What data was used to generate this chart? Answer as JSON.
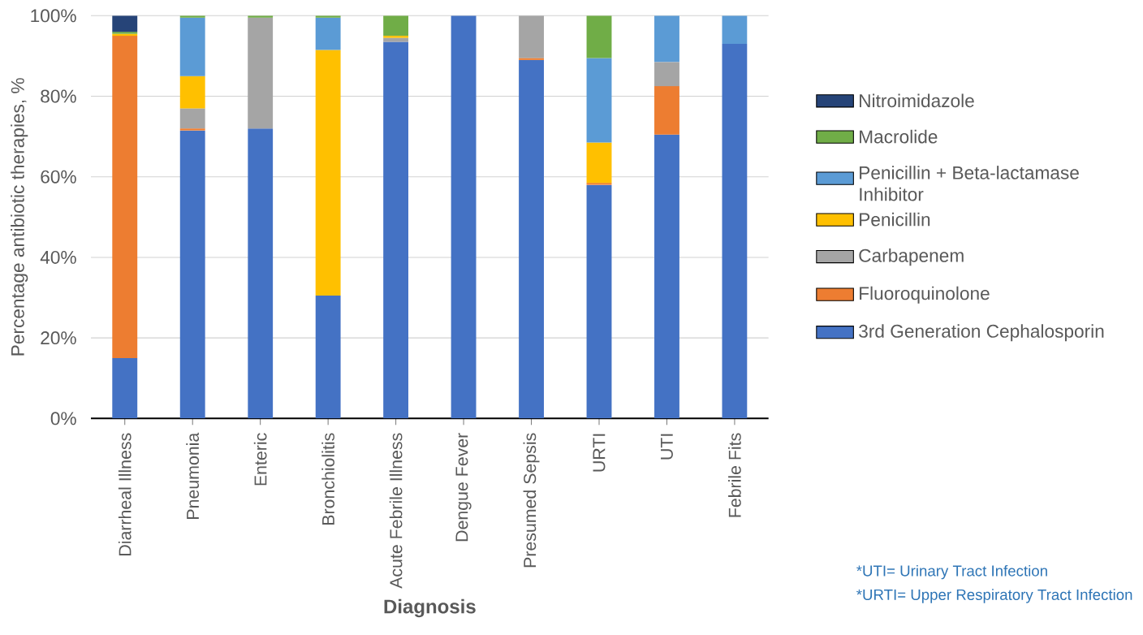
{
  "chart_data": {
    "type": "bar",
    "stacked": true,
    "xlabel": "Diagnosis",
    "ylabel": "Percentage antibiotic therapies, %",
    "categories": [
      "Diarrheal Illness",
      "Pneumonia",
      "Enteric",
      "Bronchiolitis",
      "Acute Febrile Illness",
      "Dengue Fever",
      "Presumed Sepsis",
      "URTI",
      "UTI",
      "Febrile Fits"
    ],
    "series": [
      {
        "name": "3rd Generation Cephalosporin",
        "color": "#4472c4",
        "values": [
          15,
          71.5,
          72,
          30.5,
          93.5,
          100,
          89,
          58,
          70.5,
          93
        ]
      },
      {
        "name": "Fluoroquinolone",
        "color": "#ed7d31",
        "values": [
          80,
          0.5,
          null,
          null,
          null,
          null,
          0.5,
          0.5,
          12,
          null
        ]
      },
      {
        "name": "Carbapenem",
        "color": "#a5a5a5",
        "values": [
          null,
          5,
          27.5,
          null,
          1,
          null,
          10.5,
          null,
          6,
          null
        ]
      },
      {
        "name": "Penicillin",
        "color": "#ffc000",
        "values": [
          0.5,
          8,
          null,
          61,
          0.5,
          null,
          null,
          10,
          null,
          null
        ]
      },
      {
        "name": "Penicillin + Beta-lactamase Inhibitor",
        "color": "#5b9bd5",
        "values": [
          null,
          14.5,
          null,
          8,
          null,
          null,
          null,
          21,
          11.5,
          7
        ]
      },
      {
        "name": "Macrolide",
        "color": "#70ad47",
        "values": [
          0.5,
          0.5,
          0.5,
          0.5,
          5,
          null,
          null,
          10.5,
          null,
          null
        ]
      },
      {
        "name": "Nitroimidazole",
        "color": "#264478",
        "values": [
          4,
          null,
          null,
          null,
          null,
          null,
          null,
          null,
          null,
          null
        ]
      }
    ],
    "ylim": [
      0,
      100
    ],
    "yticks": [
      {
        "value": 0,
        "label": "0%"
      },
      {
        "value": 20,
        "label": "20%"
      },
      {
        "value": 40,
        "label": "40%"
      },
      {
        "value": 60,
        "label": "60%"
      },
      {
        "value": 80,
        "label": "80%"
      },
      {
        "value": 100,
        "label": "100%"
      }
    ],
    "grid": "y",
    "legend": "right",
    "annotations": [
      "*UTI= Urinary Tract Infection",
      "*URTI= Upper Respiratory Tract Infection"
    ]
  }
}
